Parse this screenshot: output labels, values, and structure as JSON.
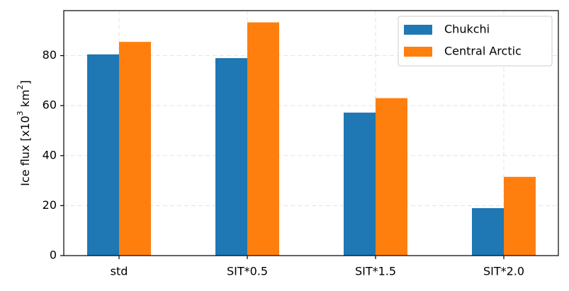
{
  "chart_data": {
    "type": "bar",
    "categories": [
      "std",
      "SIT*0.5",
      "SIT*1.5",
      "SIT*2.0"
    ],
    "series": [
      {
        "name": "Chukchi",
        "values": [
          80.5,
          79.0,
          57.2,
          19.0
        ],
        "color": "#1f77b4"
      },
      {
        "name": "Central Arctic",
        "values": [
          85.5,
          93.3,
          63.0,
          31.5
        ],
        "color": "#ff7f0e"
      }
    ],
    "ylabel_prefix": "Ice flux [x10",
    "ylabel_exp1": "3",
    "ylabel_mid": " km",
    "ylabel_exp2": "2",
    "ylabel_suffix": "]",
    "ylim": [
      0,
      98
    ],
    "yticks": [
      0,
      20,
      40,
      60,
      80
    ],
    "grid": true,
    "legend_position": "top-right"
  }
}
